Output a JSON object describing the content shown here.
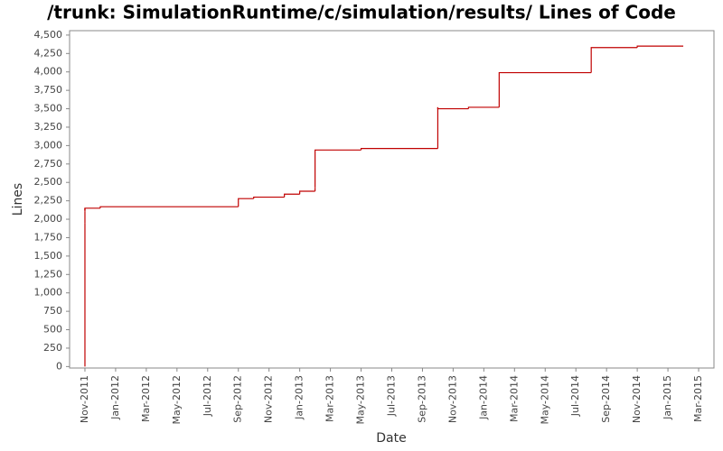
{
  "chart_data": {
    "type": "step-line",
    "title": "/trunk: SimulationRuntime/c/simulation/results/ Lines of Code",
    "x_label": "Date",
    "y_label": "Lines",
    "x": [
      "2011-11",
      "2011-11",
      "2011-11",
      "2011-11",
      "2011-11",
      "2011-11",
      "2011-12",
      "2012-09",
      "2012-10",
      "2012-12",
      "2013-01",
      "2013-01",
      "2013-02",
      "2013-02",
      "2013-02",
      "2013-05",
      "2013-10",
      "2013-10",
      "2013-12",
      "2014-02",
      "2014-08",
      "2014-11",
      "2015-02"
    ],
    "values": [
      0,
      1950,
      2100,
      2150,
      2120,
      2150,
      2170,
      2280,
      2300,
      2340,
      2370,
      2380,
      2420,
      2440,
      2940,
      2960,
      3520,
      3500,
      3520,
      3990,
      4330,
      4350,
      4350
    ],
    "color": "#c00000",
    "xlim": [
      "2011-10",
      "2015-04"
    ],
    "xticks": [
      {
        "value": "2011-11",
        "label": "Nov-2011"
      },
      {
        "value": "2012-01",
        "label": "Jan-2012"
      },
      {
        "value": "2012-03",
        "label": "Mar-2012"
      },
      {
        "value": "2012-05",
        "label": "May-2012"
      },
      {
        "value": "2012-07",
        "label": "Jul-2012"
      },
      {
        "value": "2012-09",
        "label": "Sep-2012"
      },
      {
        "value": "2012-11",
        "label": "Nov-2012"
      },
      {
        "value": "2013-01",
        "label": "Jan-2013"
      },
      {
        "value": "2013-03",
        "label": "Mar-2013"
      },
      {
        "value": "2013-05",
        "label": "May-2013"
      },
      {
        "value": "2013-07",
        "label": "Jul-2013"
      },
      {
        "value": "2013-09",
        "label": "Sep-2013"
      },
      {
        "value": "2013-11",
        "label": "Nov-2013"
      },
      {
        "value": "2014-01",
        "label": "Jan-2014"
      },
      {
        "value": "2014-03",
        "label": "Mar-2014"
      },
      {
        "value": "2014-05",
        "label": "May-2014"
      },
      {
        "value": "2014-07",
        "label": "Jul-2014"
      },
      {
        "value": "2014-09",
        "label": "Sep-2014"
      },
      {
        "value": "2014-11",
        "label": "Nov-2014"
      },
      {
        "value": "2015-01",
        "label": "Jan-2015"
      },
      {
        "value": "2015-03",
        "label": "Mar-2015"
      }
    ],
    "ylim": [
      -20,
      4560
    ],
    "yticks": [
      0,
      250,
      500,
      750,
      {
        "value": 1000,
        "label": "1,000"
      },
      {
        "value": 1250,
        "label": "1,250"
      },
      {
        "value": 1500,
        "label": "1,500"
      },
      {
        "value": 1750,
        "label": "1,750"
      },
      {
        "value": 2000,
        "label": "2,000"
      },
      {
        "value": 2250,
        "label": "2,250"
      },
      {
        "value": 2500,
        "label": "2,500"
      },
      {
        "value": 2750,
        "label": "2,750"
      },
      {
        "value": 3000,
        "label": "3,000"
      },
      {
        "value": 3250,
        "label": "3,250"
      },
      {
        "value": 3500,
        "label": "3,500"
      },
      {
        "value": 3750,
        "label": "3,750"
      },
      {
        "value": 4000,
        "label": "4,000"
      },
      {
        "value": 4250,
        "label": "4,250"
      },
      {
        "value": 4500,
        "label": "4,500"
      }
    ],
    "grid": false
  }
}
